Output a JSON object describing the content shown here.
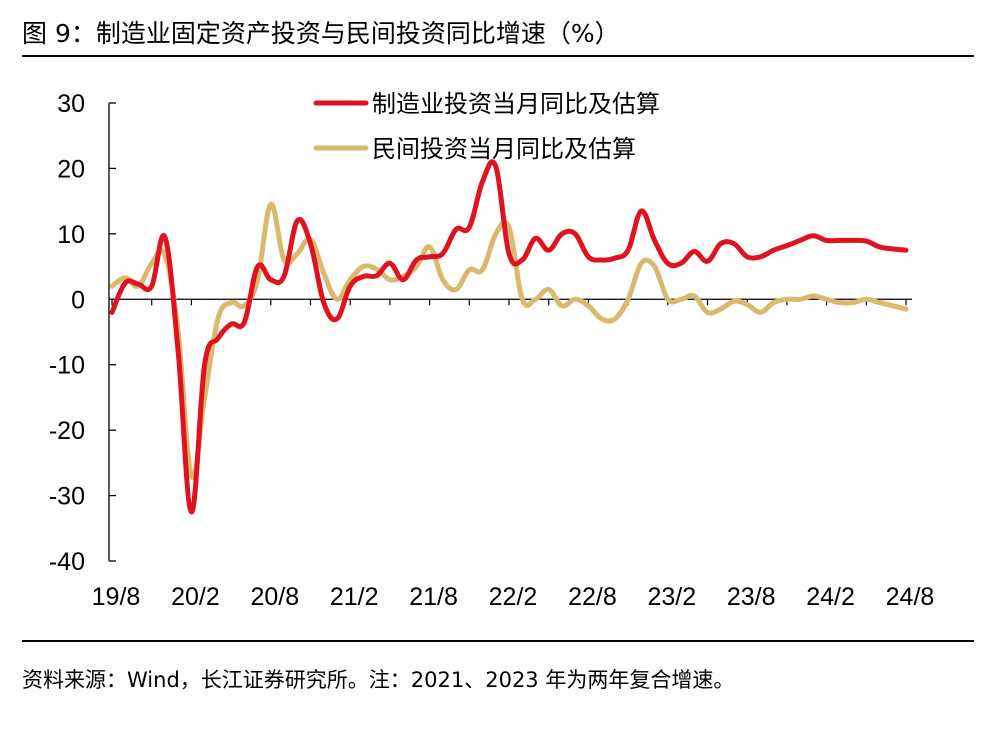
{
  "header": {
    "title": "图 9：制造业固定资产投资与民间投资同比增速（%）"
  },
  "footer": {
    "source": "资料来源：Wind，长江证券研究所。注：2021、2023 年为两年复合增速。"
  },
  "colors": {
    "manufacturing": "#e0121d",
    "private": "#dab86d",
    "axis": "#000000"
  },
  "chart_data": {
    "type": "line",
    "x": [
      "19/8",
      "19/9",
      "19/10",
      "19/11",
      "19/12",
      "20/1",
      "20/2",
      "20/3",
      "20/4",
      "20/5",
      "20/6",
      "20/7",
      "20/8",
      "20/9",
      "20/10",
      "20/11",
      "20/12",
      "21/1",
      "21/2",
      "21/3",
      "21/4",
      "21/5",
      "21/6",
      "21/7",
      "21/8",
      "21/9",
      "21/10",
      "21/11",
      "21/12",
      "22/1",
      "22/2",
      "22/3",
      "22/4",
      "22/5",
      "22/6",
      "22/7",
      "22/8",
      "22/9",
      "22/10",
      "22/11",
      "22/12",
      "23/1",
      "23/2",
      "23/3",
      "23/4",
      "23/5",
      "23/6",
      "23/7",
      "23/8",
      "23/9",
      "23/10",
      "23/11",
      "23/12",
      "24/1",
      "24/2",
      "24/3",
      "24/4",
      "24/5",
      "24/6",
      "24/7",
      "24/8"
    ],
    "x_tick_labels": [
      "19/8",
      "20/2",
      "20/8",
      "21/2",
      "21/8",
      "22/2",
      "22/8",
      "23/2",
      "23/8",
      "24/2",
      "24/8"
    ],
    "ylim": [
      -40,
      30
    ],
    "y_ticks": [
      30,
      20,
      10,
      0,
      -10,
      -20,
      -30,
      -40
    ],
    "legend_position": "top-center",
    "series": [
      {
        "name": "制造业投资当月同比及估算",
        "values": [
          -2,
          2.5,
          2.3,
          2,
          9.5,
          -8,
          -32.5,
          -10,
          -6,
          -3.8,
          -3.5,
          5,
          3,
          3.5,
          12,
          8.5,
          -0.5,
          -3,
          2,
          3.5,
          3.6,
          5.5,
          3,
          6,
          6.5,
          7,
          10.7,
          11,
          18,
          20.3,
          7,
          6,
          9.3,
          7.5,
          10,
          10,
          6.5,
          6,
          6.3,
          7.5,
          13.5,
          9,
          5.5,
          5.5,
          7.3,
          5.8,
          8.5,
          8.5,
          6.5,
          6.5,
          7.5,
          8.2,
          9,
          9.7,
          9,
          9,
          9,
          8.9,
          8,
          7.7,
          7.5
        ]
      },
      {
        "name": "民间投资当月同比及估算",
        "values": [
          2,
          3.3,
          2,
          5.5,
          6.8,
          -5,
          -27,
          -15,
          -3,
          -0.5,
          -1,
          3,
          14.5,
          6,
          7,
          9.2,
          4,
          0,
          3,
          5,
          4.6,
          3,
          3.5,
          5,
          8,
          3,
          1.5,
          4.5,
          4.5,
          10,
          11,
          0,
          0,
          1.5,
          -1,
          0,
          -1,
          -3,
          -3,
          0,
          5.5,
          5,
          0,
          0,
          0.5,
          -2,
          -1.5,
          -0.3,
          -0.8,
          -2,
          -0.5,
          0,
          0,
          0.5,
          0,
          -0.5,
          -0.5,
          0,
          -0.5,
          -1,
          -1.5
        ]
      }
    ]
  }
}
